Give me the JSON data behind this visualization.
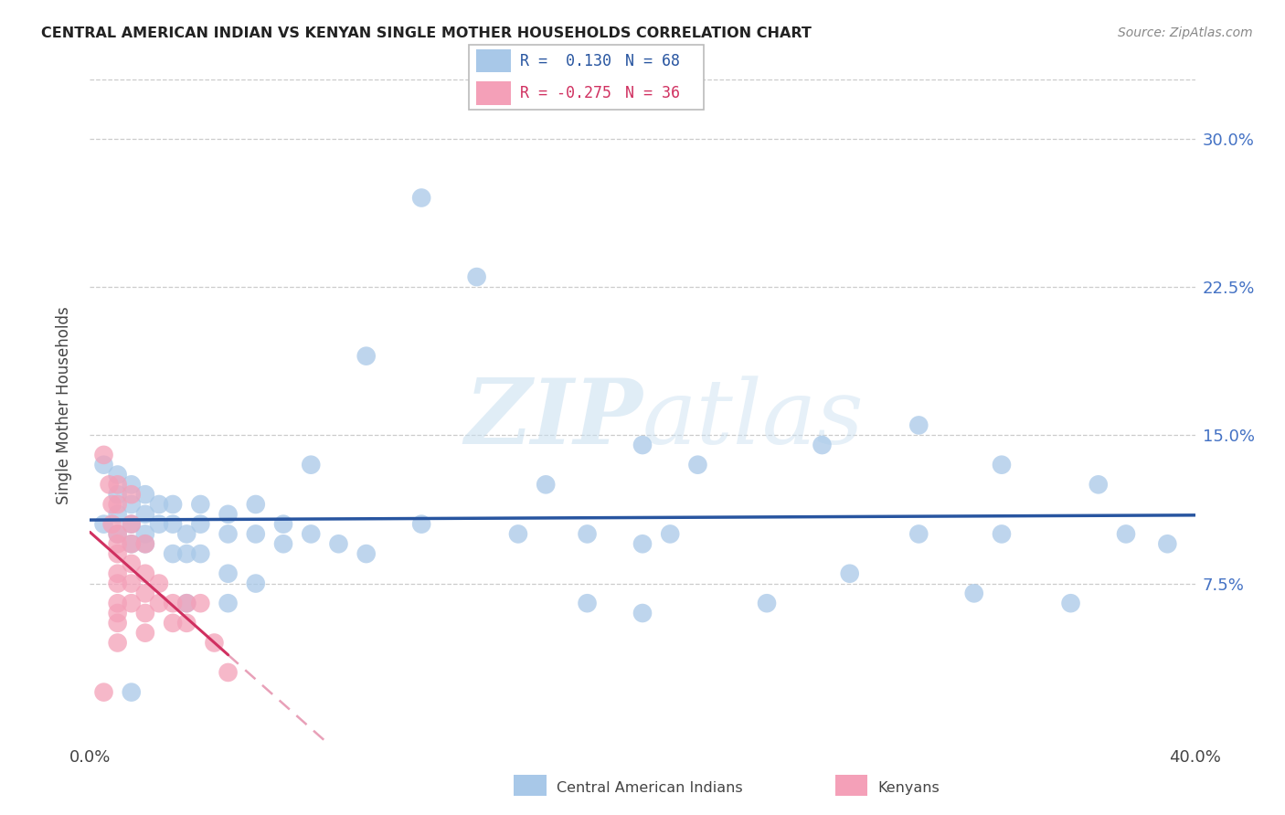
{
  "title": "CENTRAL AMERICAN INDIAN VS KENYAN SINGLE MOTHER HOUSEHOLDS CORRELATION CHART",
  "source": "Source: ZipAtlas.com",
  "ylabel": "Single Mother Households",
  "xlim": [
    0.0,
    0.4
  ],
  "ylim": [
    -0.005,
    0.335
  ],
  "ytick_labels": [
    "7.5%",
    "15.0%",
    "22.5%",
    "30.0%"
  ],
  "ytick_values": [
    0.075,
    0.15,
    0.225,
    0.3
  ],
  "xtick_values": [
    0.0,
    0.05,
    0.1,
    0.15,
    0.2,
    0.25,
    0.3,
    0.35,
    0.4
  ],
  "blue_color": "#a8c8e8",
  "pink_color": "#f4a0b8",
  "blue_line_color": "#2855a0",
  "pink_line_color": "#d03060",
  "pink_dash_color": "#e8a0b8",
  "blue_points": [
    [
      0.005,
      0.135
    ],
    [
      0.005,
      0.105
    ],
    [
      0.01,
      0.13
    ],
    [
      0.01,
      0.12
    ],
    [
      0.01,
      0.11
    ],
    [
      0.01,
      0.1
    ],
    [
      0.015,
      0.125
    ],
    [
      0.015,
      0.115
    ],
    [
      0.015,
      0.105
    ],
    [
      0.015,
      0.095
    ],
    [
      0.02,
      0.12
    ],
    [
      0.02,
      0.11
    ],
    [
      0.02,
      0.1
    ],
    [
      0.02,
      0.095
    ],
    [
      0.025,
      0.115
    ],
    [
      0.025,
      0.105
    ],
    [
      0.03,
      0.115
    ],
    [
      0.03,
      0.105
    ],
    [
      0.03,
      0.09
    ],
    [
      0.035,
      0.1
    ],
    [
      0.035,
      0.09
    ],
    [
      0.035,
      0.065
    ],
    [
      0.04,
      0.115
    ],
    [
      0.04,
      0.105
    ],
    [
      0.04,
      0.09
    ],
    [
      0.05,
      0.11
    ],
    [
      0.05,
      0.1
    ],
    [
      0.05,
      0.08
    ],
    [
      0.05,
      0.065
    ],
    [
      0.06,
      0.115
    ],
    [
      0.06,
      0.1
    ],
    [
      0.06,
      0.075
    ],
    [
      0.07,
      0.105
    ],
    [
      0.07,
      0.095
    ],
    [
      0.08,
      0.135
    ],
    [
      0.08,
      0.1
    ],
    [
      0.09,
      0.095
    ],
    [
      0.1,
      0.19
    ],
    [
      0.1,
      0.09
    ],
    [
      0.12,
      0.27
    ],
    [
      0.12,
      0.105
    ],
    [
      0.14,
      0.23
    ],
    [
      0.155,
      0.1
    ],
    [
      0.165,
      0.125
    ],
    [
      0.18,
      0.1
    ],
    [
      0.18,
      0.065
    ],
    [
      0.2,
      0.145
    ],
    [
      0.2,
      0.095
    ],
    [
      0.2,
      0.06
    ],
    [
      0.21,
      0.1
    ],
    [
      0.22,
      0.135
    ],
    [
      0.245,
      0.065
    ],
    [
      0.265,
      0.145
    ],
    [
      0.275,
      0.08
    ],
    [
      0.3,
      0.155
    ],
    [
      0.3,
      0.1
    ],
    [
      0.32,
      0.07
    ],
    [
      0.33,
      0.135
    ],
    [
      0.33,
      0.1
    ],
    [
      0.355,
      0.065
    ],
    [
      0.365,
      0.125
    ],
    [
      0.375,
      0.1
    ],
    [
      0.39,
      0.095
    ],
    [
      0.015,
      0.02
    ]
  ],
  "pink_points": [
    [
      0.005,
      0.14
    ],
    [
      0.007,
      0.125
    ],
    [
      0.008,
      0.115
    ],
    [
      0.008,
      0.105
    ],
    [
      0.01,
      0.125
    ],
    [
      0.01,
      0.115
    ],
    [
      0.01,
      0.1
    ],
    [
      0.01,
      0.095
    ],
    [
      0.01,
      0.09
    ],
    [
      0.01,
      0.08
    ],
    [
      0.01,
      0.075
    ],
    [
      0.01,
      0.065
    ],
    [
      0.01,
      0.06
    ],
    [
      0.01,
      0.055
    ],
    [
      0.01,
      0.045
    ],
    [
      0.015,
      0.12
    ],
    [
      0.015,
      0.105
    ],
    [
      0.015,
      0.095
    ],
    [
      0.015,
      0.085
    ],
    [
      0.015,
      0.075
    ],
    [
      0.015,
      0.065
    ],
    [
      0.02,
      0.095
    ],
    [
      0.02,
      0.08
    ],
    [
      0.02,
      0.07
    ],
    [
      0.02,
      0.06
    ],
    [
      0.02,
      0.05
    ],
    [
      0.025,
      0.075
    ],
    [
      0.025,
      0.065
    ],
    [
      0.03,
      0.065
    ],
    [
      0.03,
      0.055
    ],
    [
      0.035,
      0.065
    ],
    [
      0.035,
      0.055
    ],
    [
      0.04,
      0.065
    ],
    [
      0.045,
      0.045
    ],
    [
      0.05,
      0.03
    ],
    [
      0.005,
      0.02
    ]
  ]
}
